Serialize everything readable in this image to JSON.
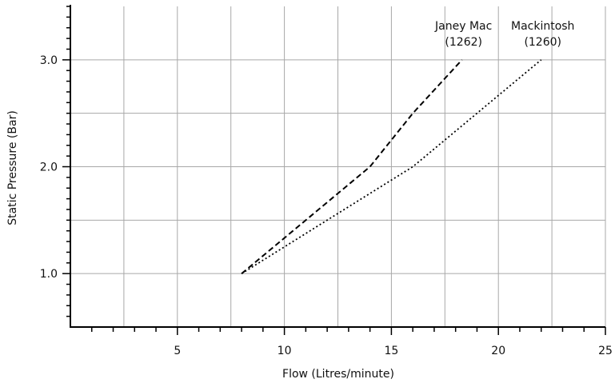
{
  "chart_data": {
    "type": "line",
    "xlabel": "Flow (Litres/minute)",
    "ylabel": "Static Pressure (Bar)",
    "xlim": [
      0,
      25
    ],
    "ylim": [
      0.5,
      3.5
    ],
    "x_ticks": [
      5,
      10,
      15,
      20,
      25
    ],
    "y_ticks": [
      1.0,
      2.0,
      3.0
    ],
    "x_tick_labels": [
      "5",
      "10",
      "15",
      "20",
      "25"
    ],
    "y_tick_labels": [
      "1.0",
      "2.0",
      "3.0"
    ],
    "grid": true,
    "series": [
      {
        "name": "Janey Mac",
        "label_lines": [
          "Janey Mac",
          "(1262)"
        ],
        "line_style": "dashed",
        "color": "#000000",
        "points": [
          [
            8.0,
            1.0
          ],
          [
            14.0,
            2.0
          ],
          [
            16.0,
            2.5
          ],
          [
            18.3,
            3.0
          ]
        ]
      },
      {
        "name": "Mackintosh",
        "label_lines": [
          "Mackintosh",
          "(1260)"
        ],
        "line_style": "dotted",
        "color": "#000000",
        "points": [
          [
            8.0,
            1.0
          ],
          [
            12.0,
            1.5
          ],
          [
            16.0,
            2.0
          ],
          [
            22.0,
            3.0
          ]
        ]
      }
    ]
  }
}
